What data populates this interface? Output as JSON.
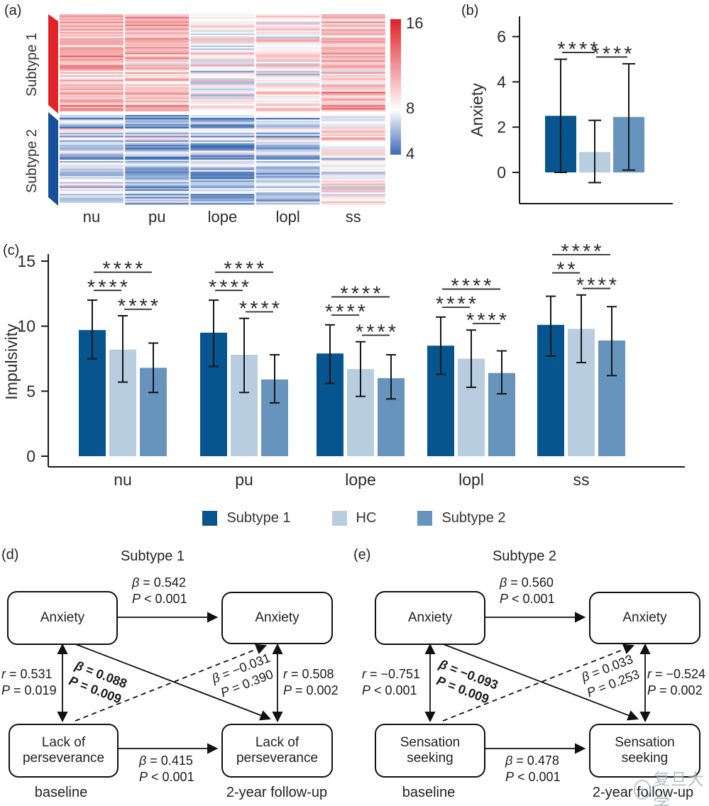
{
  "panels": {
    "a": {
      "label": "(a)"
    },
    "b": {
      "label": "(b)"
    },
    "c": {
      "label": "(c)"
    },
    "d": {
      "label": "(d)"
    },
    "e": {
      "label": "(e)"
    }
  },
  "colors": {
    "subtype1": "#07558f",
    "hc": "#b9cde0",
    "subtype2": "#6794bc",
    "band_red": "#e1242a",
    "band_blue": "#17509a",
    "heat_red": "#e02125",
    "heat_blue": "#3b6ab4",
    "axis": "#1a1a1a"
  },
  "legend": {
    "items": [
      {
        "label": "Subtype 1",
        "color_key": "subtype1"
      },
      {
        "label": "HC",
        "color_key": "hc"
      },
      {
        "label": "Subtype 2",
        "color_key": "subtype2"
      }
    ]
  },
  "chart_data": [
    {
      "id": "a",
      "type": "heatmap",
      "columns": [
        "nu",
        "pu",
        "lope",
        "lopl",
        "ss"
      ],
      "row_groups": [
        {
          "label": "Subtype 1",
          "approx_rows": 65,
          "col_means": [
            10.6,
            10.4,
            8.2,
            8.7,
            10.3
          ]
        },
        {
          "label": "Subtype 2",
          "approx_rows": 60,
          "col_means": [
            7.2,
            6.2,
            6.2,
            6.9,
            8.7
          ]
        }
      ],
      "colorbar": {
        "min": 4,
        "mid": 8,
        "max": 16,
        "tick_labels": [
          "16",
          "8",
          "4"
        ]
      }
    },
    {
      "id": "b",
      "type": "bar",
      "ylabel": "Anxiety",
      "yticks": [
        0,
        2,
        4,
        6
      ],
      "series": [
        "Subtype 1",
        "HC",
        "Subtype 2"
      ],
      "values": [
        2.5,
        0.9,
        2.45
      ],
      "err_lo": [
        0.0,
        -0.45,
        0.1
      ],
      "err_hi": [
        5.0,
        2.3,
        4.8
      ],
      "significance": [
        {
          "pair": [
            0,
            1
          ],
          "label": "****"
        },
        {
          "pair": [
            1,
            2
          ],
          "label": "****"
        }
      ]
    },
    {
      "id": "c",
      "type": "bar",
      "ylabel": "Impulsivity",
      "yticks": [
        0,
        5,
        10,
        15
      ],
      "categories": [
        "nu",
        "pu",
        "lope",
        "lopl",
        "ss"
      ],
      "series": [
        {
          "name": "Subtype 1",
          "values": [
            9.7,
            9.5,
            7.9,
            8.5,
            10.1
          ],
          "err_lo": [
            7.5,
            6.9,
            5.6,
            6.3,
            7.7
          ],
          "err_hi": [
            12.0,
            12.0,
            10.1,
            10.7,
            12.3
          ]
        },
        {
          "name": "HC",
          "values": [
            8.2,
            7.8,
            6.7,
            7.5,
            9.8
          ],
          "err_lo": [
            5.7,
            4.9,
            4.6,
            5.3,
            7.2
          ],
          "err_hi": [
            10.8,
            10.6,
            8.8,
            9.7,
            12.4
          ]
        },
        {
          "name": "Subtype 2",
          "values": [
            6.8,
            5.9,
            6.0,
            6.4,
            8.9
          ],
          "err_lo": [
            4.9,
            4.1,
            4.4,
            4.8,
            6.2
          ],
          "err_hi": [
            8.7,
            7.8,
            7.8,
            8.1,
            11.5
          ]
        }
      ],
      "significance": [
        [
          {
            "pair": [
              0,
              1
            ],
            "label": "****"
          },
          {
            "pair": [
              0,
              2
            ],
            "label": "****"
          },
          {
            "pair": [
              1,
              2
            ],
            "label": "****"
          }
        ],
        [
          {
            "pair": [
              0,
              1
            ],
            "label": "****"
          },
          {
            "pair": [
              0,
              2
            ],
            "label": "****"
          },
          {
            "pair": [
              1,
              2
            ],
            "label": "****"
          }
        ],
        [
          {
            "pair": [
              0,
              1
            ],
            "label": "****"
          },
          {
            "pair": [
              0,
              2
            ],
            "label": "****"
          },
          {
            "pair": [
              1,
              2
            ],
            "label": "****"
          }
        ],
        [
          {
            "pair": [
              0,
              1
            ],
            "label": "****"
          },
          {
            "pair": [
              0,
              2
            ],
            "label": "****"
          },
          {
            "pair": [
              1,
              2
            ],
            "label": "****"
          }
        ],
        [
          {
            "pair": [
              0,
              1
            ],
            "label": "**"
          },
          {
            "pair": [
              0,
              2
            ],
            "label": "****"
          },
          {
            "pair": [
              1,
              2
            ],
            "label": "****"
          }
        ]
      ]
    }
  ],
  "path_models": [
    {
      "id": "d",
      "title": "Subtype 1",
      "boxes": {
        "top_left": "Anxiety",
        "top_right": "Anxiety",
        "bottom_left": "Lack of\nperseverance",
        "bottom_right": "Lack of\nperseverance"
      },
      "edges": {
        "top": {
          "lines": [
            "β = 0.542",
            "P < 0.001"
          ]
        },
        "bottom": {
          "lines": [
            "β = 0.415",
            "P < 0.001"
          ]
        },
        "left": {
          "lines": [
            "r = 0.531",
            "P = 0.019"
          ]
        },
        "right": {
          "lines": [
            "r = 0.508",
            "P = 0.002"
          ]
        },
        "cross_solid": {
          "lines": [
            "β = 0.088",
            "P = 0.009"
          ]
        },
        "cross_dashed": {
          "lines": [
            "β = −0.031",
            "P = 0.390"
          ]
        }
      },
      "time_labels": [
        "baseline",
        "2-year follow-up"
      ]
    },
    {
      "id": "e",
      "title": "Subtype 2",
      "boxes": {
        "top_left": "Anxiety",
        "top_right": "Anxiety",
        "bottom_left": "Sensation\nseeking",
        "bottom_right": "Sensation\nseeking"
      },
      "edges": {
        "top": {
          "lines": [
            "β = 0.560",
            "P < 0.001"
          ]
        },
        "bottom": {
          "lines": [
            "β = 0.478",
            "P < 0.001"
          ]
        },
        "left": {
          "lines": [
            "r = −0.751",
            "P < 0.001"
          ]
        },
        "right": {
          "lines": [
            "r = −0.524",
            "P = 0.002"
          ]
        },
        "cross_solid": {
          "lines": [
            "β = −0.093",
            "P = 0.009"
          ]
        },
        "cross_dashed": {
          "lines": [
            "β = 0.033",
            "P = 0.253"
          ]
        }
      },
      "time_labels": [
        "baseline",
        "2-year follow-up"
      ]
    }
  ],
  "watermark": "复旦大学"
}
